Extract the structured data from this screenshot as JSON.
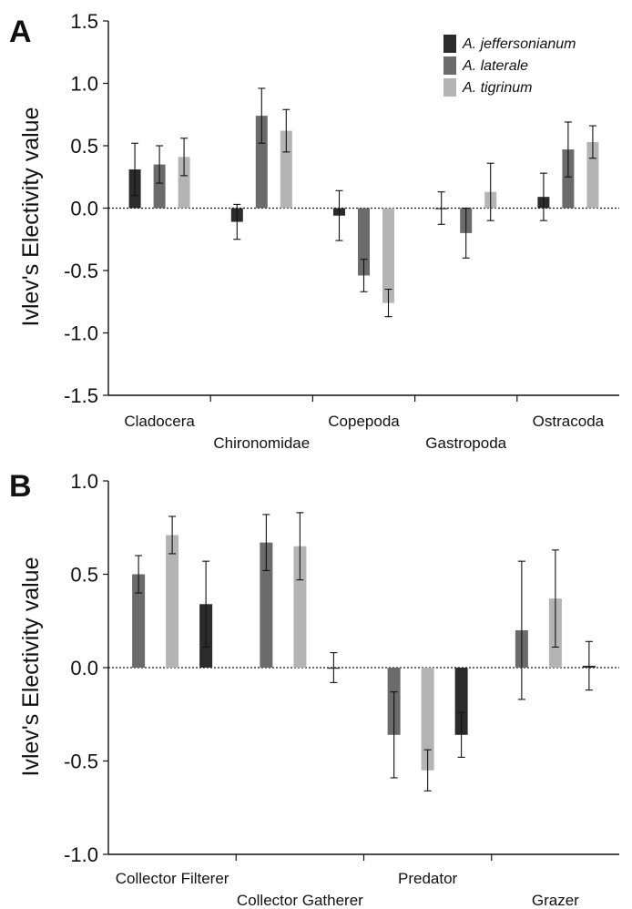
{
  "chart_data": [
    {
      "type": "bar",
      "panel": "A",
      "ylabel": "Ivlev's Electivity value",
      "ylim": [
        -1.5,
        1.5
      ],
      "yticks": [
        "1.5",
        "1.0",
        "0.5",
        "0.0",
        "-0.5",
        "-1.0",
        "-1.5"
      ],
      "ytick_values": [
        1.5,
        1.0,
        0.5,
        0.0,
        -0.5,
        -1.0,
        -1.5
      ],
      "categories": [
        "Cladocera",
        "Chironomidae",
        "Copepoda",
        "Gastropoda",
        "Ostracoda"
      ],
      "legend": {
        "placement": "top-right"
      },
      "series": [
        {
          "name": "A. jeffersonianum",
          "color": "#2b2b2b",
          "values": [
            0.31,
            -0.11,
            -0.06,
            0.0,
            0.09
          ],
          "errors": [
            0.21,
            0.14,
            0.2,
            0.13,
            0.19
          ]
        },
        {
          "name": "A. laterale",
          "color": "#6b6b6b",
          "values": [
            0.35,
            0.74,
            -0.54,
            -0.2,
            0.47
          ],
          "errors": [
            0.15,
            0.22,
            0.13,
            0.2,
            0.22
          ]
        },
        {
          "name": "A. tigrinum",
          "color": "#b4b4b4",
          "values": [
            0.41,
            0.62,
            -0.76,
            0.13,
            0.53
          ],
          "errors": [
            0.15,
            0.17,
            0.11,
            0.23,
            0.13
          ]
        }
      ]
    },
    {
      "type": "bar",
      "panel": "B",
      "ylabel": "Ivlev's Electivity value",
      "ylim": [
        -1.0,
        1.0
      ],
      "yticks": [
        "1.0",
        "0.5",
        "0.0",
        "-0.5",
        "-1.0"
      ],
      "ytick_values": [
        1.0,
        0.5,
        0.0,
        -0.5,
        -1.0
      ],
      "categories": [
        "Collector Filterer",
        "Collector Gatherer",
        "Predator",
        "Grazer"
      ],
      "series": [
        {
          "name": "A. laterale",
          "color": "#6b6b6b",
          "values": [
            0.5,
            0.67,
            -0.36,
            0.2
          ],
          "errors": [
            0.1,
            0.15,
            0.23,
            0.37
          ]
        },
        {
          "name": "A. tigrinum",
          "color": "#b4b4b4",
          "values": [
            0.71,
            0.65,
            -0.55,
            0.37
          ],
          "errors": [
            0.1,
            0.18,
            0.11,
            0.26
          ]
        },
        {
          "name": "A. jeffersonianum",
          "color": "#2b2b2b",
          "values": [
            0.34,
            0.0,
            -0.36,
            0.01
          ],
          "errors": [
            0.23,
            0.08,
            0.12,
            0.13
          ]
        }
      ]
    }
  ]
}
